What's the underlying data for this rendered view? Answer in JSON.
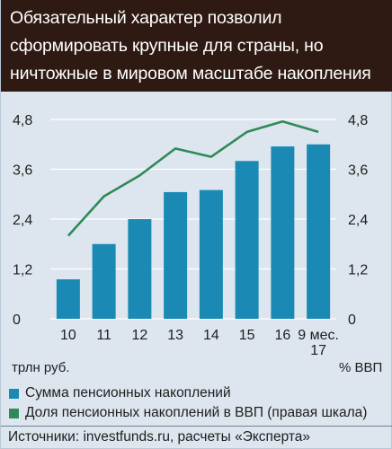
{
  "title": "Обязательный характер позволил\nсформировать крупные для страны, но\nничтожные в мировом масштабе накопления",
  "colors": {
    "background": "#dde6ee",
    "title_bg": "#2e1a12",
    "bar": "#1a8ab5",
    "line": "#2e8a57",
    "grid": "#ffffff"
  },
  "chart_data": {
    "type": "bar",
    "categories": [
      "10",
      "11",
      "12",
      "13",
      "14",
      "15",
      "16",
      "9 мес.\n17"
    ],
    "series": [
      {
        "name": "Сумма пенсионных накоплений",
        "type": "bar",
        "axis": "left",
        "values": [
          0.95,
          1.8,
          2.4,
          3.05,
          3.1,
          3.8,
          4.15,
          4.2
        ]
      },
      {
        "name": "Доля пенсионных накоплений в ВВП (правая шкала)",
        "type": "line",
        "axis": "right",
        "values": [
          2.0,
          2.95,
          3.45,
          4.1,
          3.9,
          4.5,
          4.75,
          4.5
        ]
      }
    ],
    "ylim": [
      0,
      4.8
    ],
    "y_ticks": [
      "0",
      "1,2",
      "2,4",
      "3,6",
      "4,8"
    ],
    "y2lim": [
      0,
      4.8
    ],
    "y2_ticks": [
      "0",
      "1,2",
      "2,4",
      "3,6",
      "4,8"
    ],
    "ylabel": "трлн руб.",
    "y2label": "% ВВП",
    "grid": true,
    "legend_position": "bottom"
  },
  "source": "Источники: investfunds.ru, расчеты «Эксперта»"
}
